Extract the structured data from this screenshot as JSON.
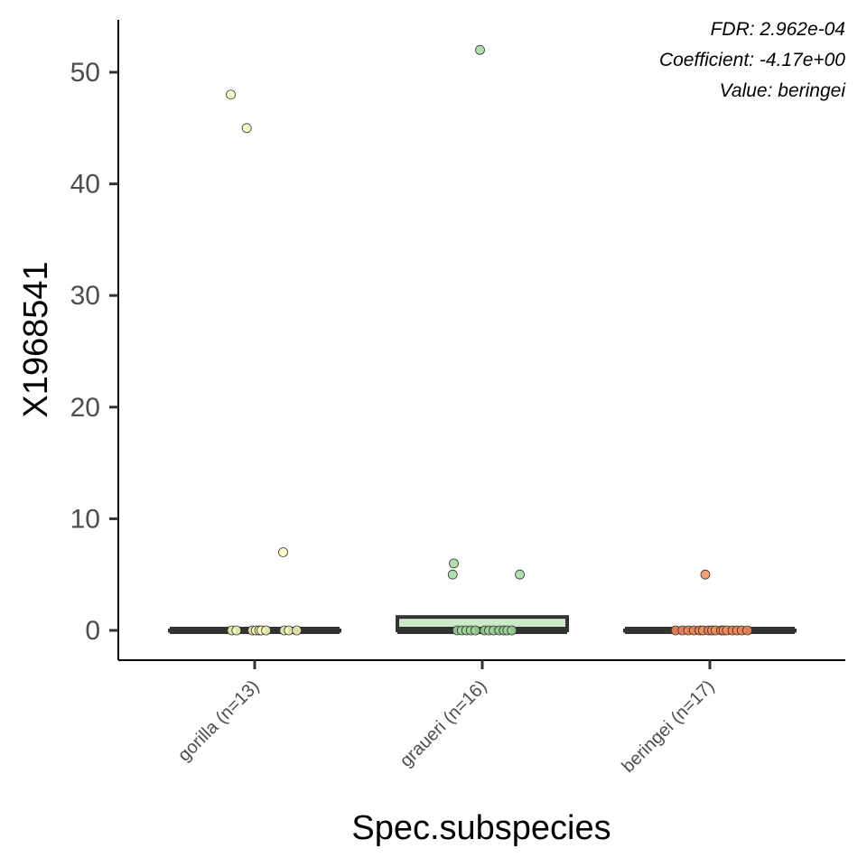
{
  "chart_data": {
    "type": "box",
    "xlabel": "Spec.subspecies",
    "ylabel": "X1968541",
    "ylim": [
      -2.6,
      54.5
    ],
    "yticks": [
      0,
      10,
      20,
      30,
      40,
      50
    ],
    "grid": false,
    "annotations": [
      "FDR: 2.962e-04",
      "Coefficient: -4.17e+00",
      "Value: beringei"
    ],
    "groups": [
      {
        "label": "gorilla (n=13)",
        "color": "#ffffbf",
        "box": {
          "q1": 0,
          "median": 0,
          "q3": 0
        },
        "points": [
          48,
          45,
          7,
          0,
          0,
          0,
          0,
          0,
          0,
          0,
          0,
          0,
          0
        ],
        "jitter": [
          -0.21,
          -0.07,
          0.25,
          -0.2,
          -0.16,
          -0.02,
          0.01,
          0.04,
          0.06,
          0.1,
          0.26,
          0.3,
          0.37
        ]
      },
      {
        "label": "graueri (n=16)",
        "color": "#a1d99b",
        "box": {
          "q1": 0,
          "median": 0,
          "q3": 1.2
        },
        "points": [
          52,
          6,
          5,
          5,
          0,
          0,
          0,
          0,
          0,
          0,
          0,
          0,
          0,
          0,
          0,
          0
        ],
        "jitter": [
          -0.02,
          -0.25,
          -0.26,
          0.33,
          -0.22,
          -0.18,
          -0.14,
          -0.1,
          -0.06,
          0.02,
          0.06,
          0.1,
          0.15,
          0.19,
          0.22,
          0.26
        ]
      },
      {
        "label": "beringei (n=17)",
        "color": "#fc8d59",
        "box": {
          "q1": 0,
          "median": 0,
          "q3": 0
        },
        "points": [
          5,
          0,
          0,
          0,
          0,
          0,
          0,
          0,
          0,
          0,
          0,
          0,
          0,
          0,
          0,
          0,
          0
        ],
        "jitter": [
          -0.04,
          -0.3,
          -0.24,
          -0.19,
          -0.14,
          -0.09,
          -0.06,
          -0.01,
          0.02,
          0.05,
          0.1,
          0.12,
          0.15,
          0.2,
          0.24,
          0.28,
          0.33
        ]
      }
    ]
  }
}
